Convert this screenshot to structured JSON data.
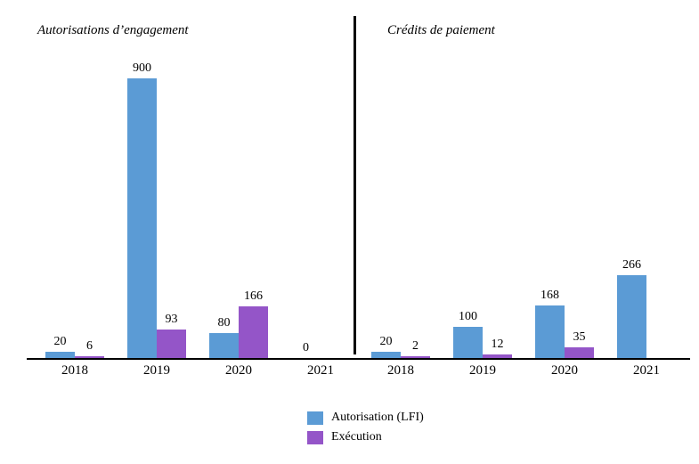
{
  "figure": {
    "background": "#FFFFFF",
    "divider_color": "#000000",
    "axis_color": "#000000"
  },
  "legend": {
    "items": [
      {
        "label": "Autorisation (LFI)",
        "color": "#5B9BD5",
        "icon": "blue-swatch"
      },
      {
        "label": "Exécution",
        "color": "#9455C8",
        "icon": "purple-swatch"
      }
    ]
  },
  "chart_data": [
    {
      "type": "bar",
      "title": "Autorisations d’engagement",
      "categories": [
        "2018",
        "2019",
        "2020",
        "2021"
      ],
      "series": [
        {
          "name": "Autorisation (LFI)",
          "color": "#5B9BD5",
          "values": [
            20,
            900,
            80,
            0
          ]
        },
        {
          "name": "Exécution",
          "color": "#9455C8",
          "values": [
            6,
            93,
            166,
            null
          ]
        }
      ],
      "ylim": [
        0,
        980
      ],
      "grid": false,
      "data_labels": true,
      "legend_position": "bottom"
    },
    {
      "type": "bar",
      "title": "Crédits de paiement",
      "categories": [
        "2018",
        "2019",
        "2020",
        "2021"
      ],
      "series": [
        {
          "name": "Autorisation (LFI)",
          "color": "#5B9BD5",
          "values": [
            20,
            100,
            168,
            266
          ]
        },
        {
          "name": "Exécution",
          "color": "#9455C8",
          "values": [
            2,
            12,
            35,
            null
          ]
        }
      ],
      "ylim": [
        0,
        980
      ],
      "grid": false,
      "data_labels": true,
      "legend_position": "bottom"
    }
  ]
}
